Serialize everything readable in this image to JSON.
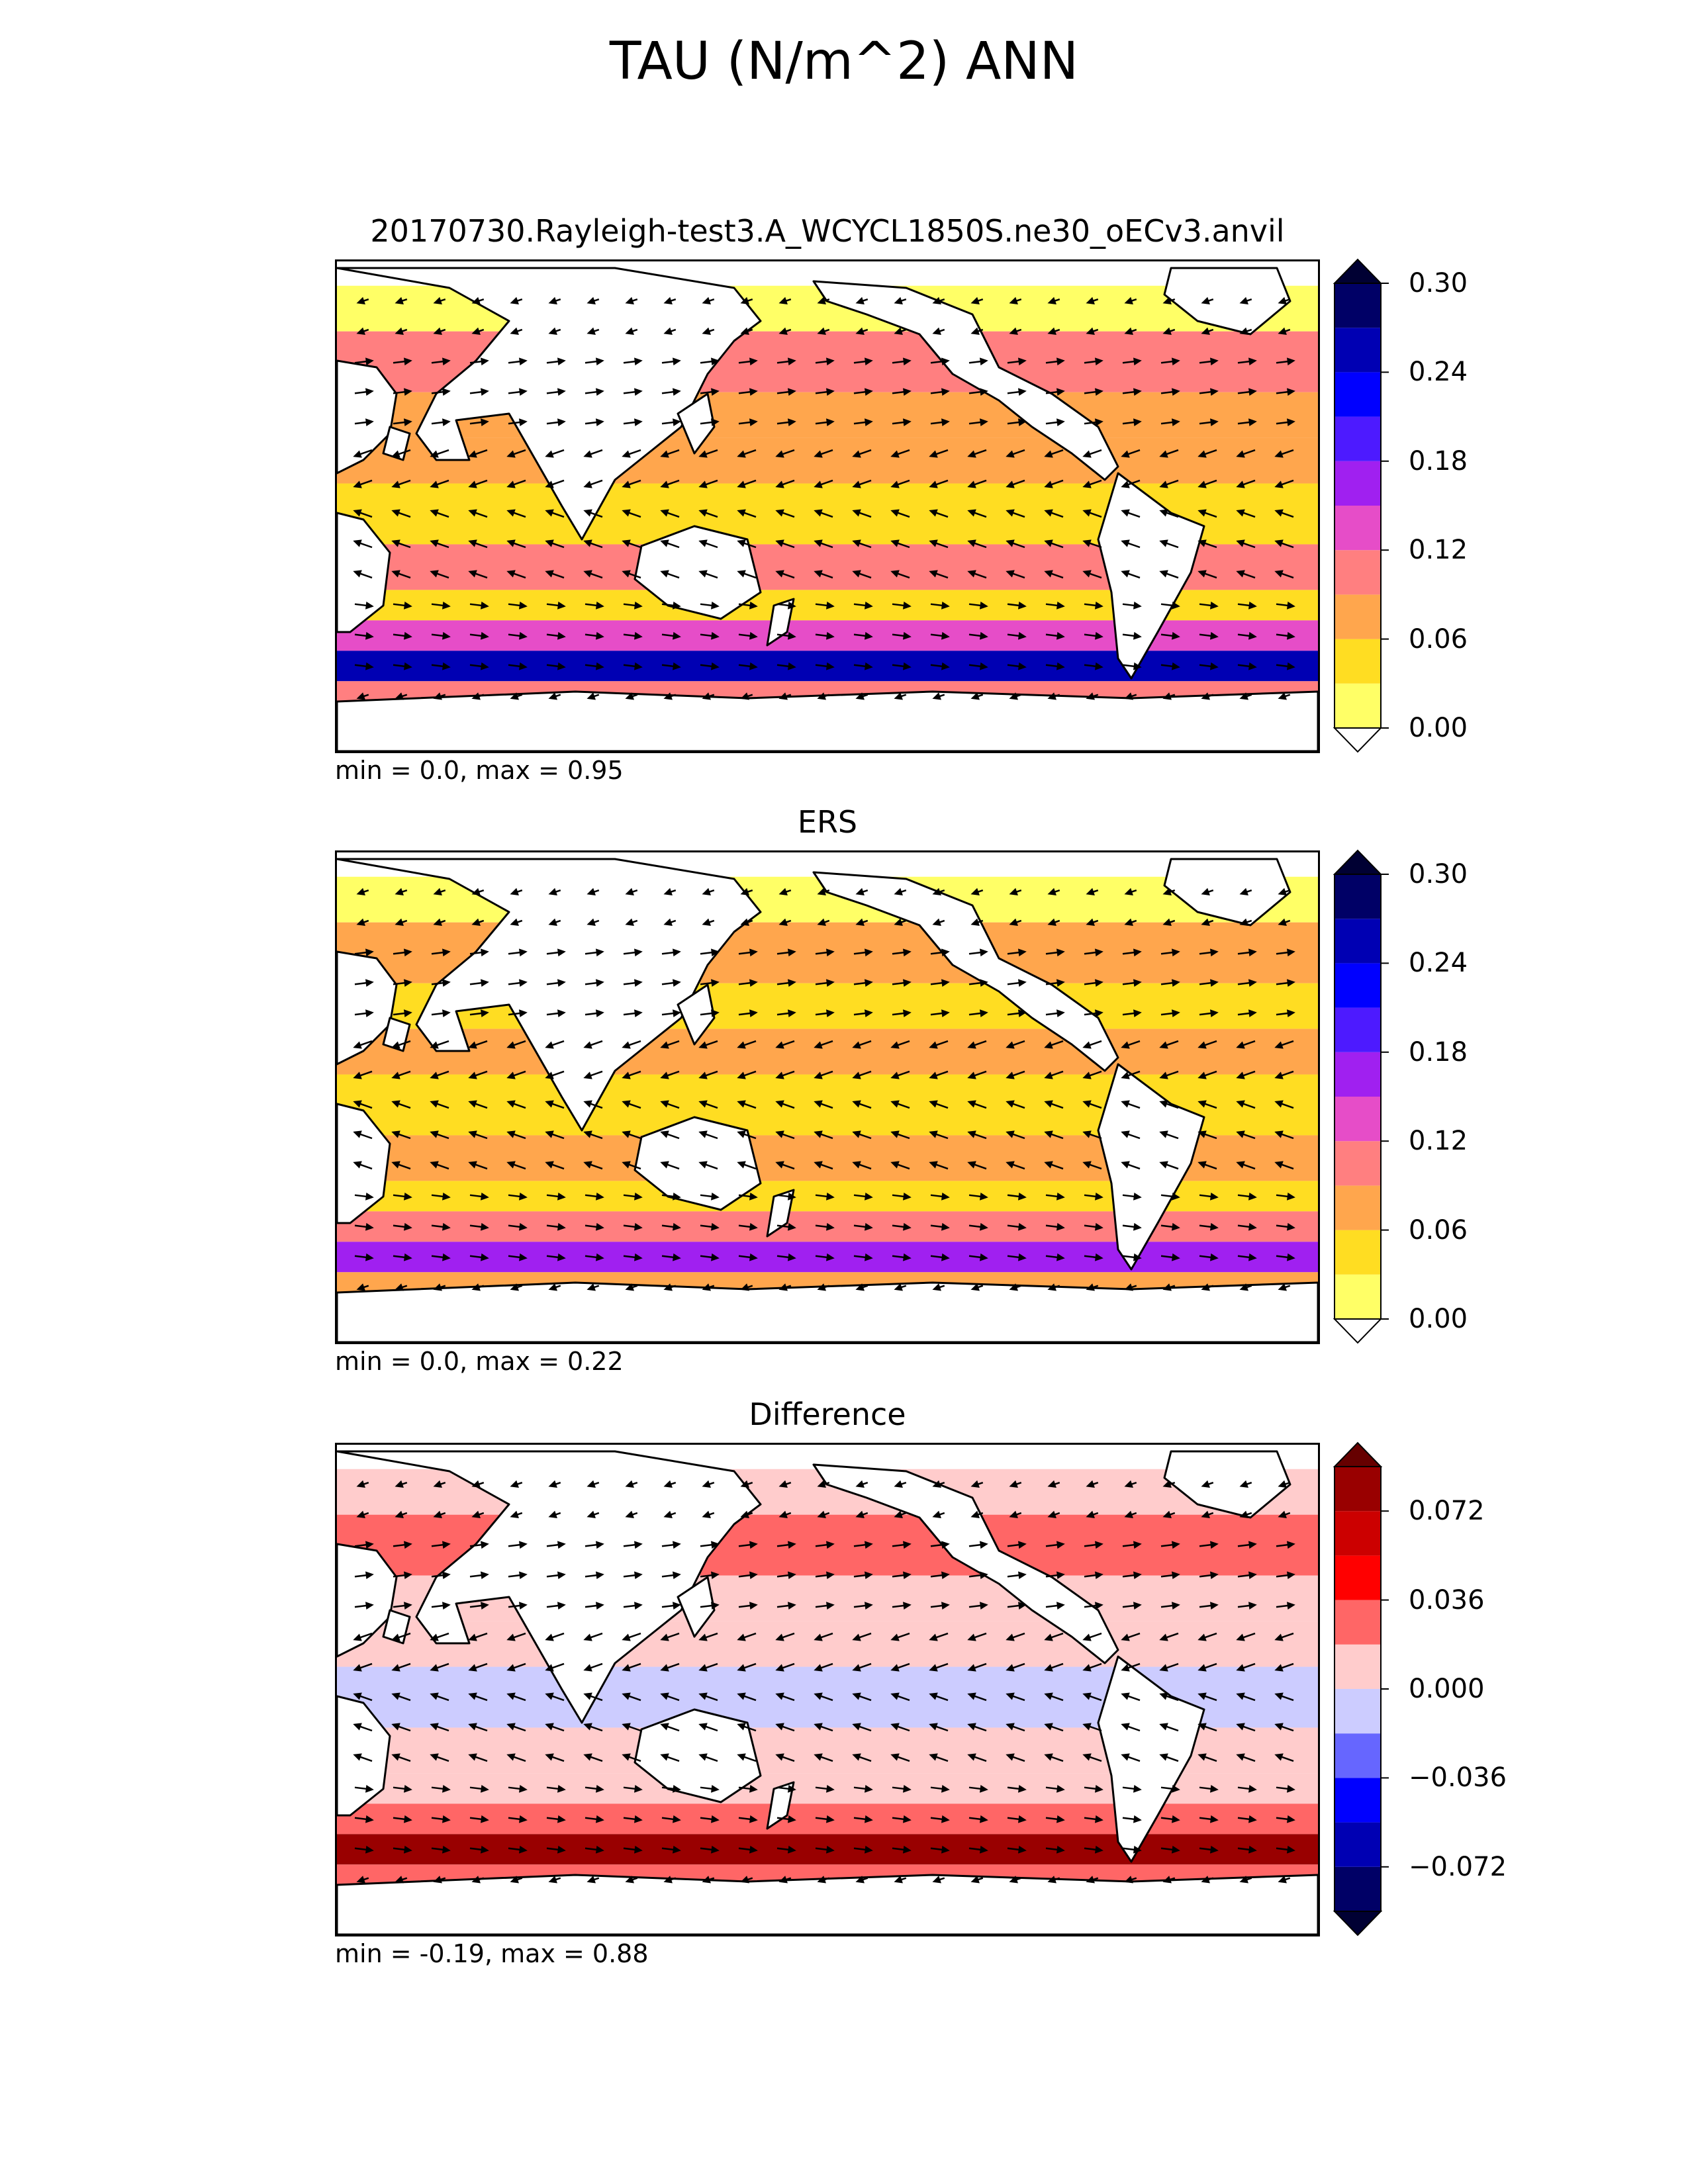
{
  "figure": {
    "title": "TAU (N/m^2) ANN"
  },
  "chart_data": [
    {
      "type": "heatmap",
      "title": "20170730.Rayleigh-test3.A_WCYCL1850S.ne30_oECv3.anvil",
      "stats": "min = 0.0, max = 0.95",
      "projection": "global lat-lon, centered at 180°",
      "overlay": "wind stress vectors (arrows)",
      "colorbar": {
        "levels": [
          0.0,
          0.03,
          0.06,
          0.09,
          0.12,
          0.15,
          0.18,
          0.21,
          0.24,
          0.27,
          0.3
        ],
        "colors": [
          "#ffff66",
          "#ffdd22",
          "#ffa64d",
          "#ff7f80",
          "#e64dc8",
          "#a020f0",
          "#4d1aff",
          "#0000ff",
          "#0000b3",
          "#000066"
        ],
        "extend": "both",
        "under_color": "#ffffff",
        "over_color": "#000033",
        "tick_values": [
          0.0,
          0.06,
          0.12,
          0.18,
          0.24,
          0.3
        ],
        "tick_labels": [
          "0.00",
          "0.06",
          "0.12",
          "0.18",
          "0.24",
          "0.30"
        ]
      },
      "zonal_bands": [
        {
          "lat_range": [
            60,
            75
          ],
          "value": 0.02
        },
        {
          "lat_range": [
            40,
            60
          ],
          "value": 0.1
        },
        {
          "lat_range": [
            25,
            40
          ],
          "value": 0.06
        },
        {
          "lat_range": [
            10,
            25
          ],
          "value": 0.08
        },
        {
          "lat_range": [
            -10,
            10
          ],
          "value": 0.03
        },
        {
          "lat_range": [
            -25,
            -10
          ],
          "value": 0.09
        },
        {
          "lat_range": [
            -35,
            -25
          ],
          "value": 0.05
        },
        {
          "lat_range": [
            -45,
            -35
          ],
          "value": 0.12
        },
        {
          "lat_range": [
            -55,
            -45
          ],
          "value": 0.25
        },
        {
          "lat_range": [
            -62,
            -55
          ],
          "value": 0.1
        }
      ]
    },
    {
      "type": "heatmap",
      "title": "ERS",
      "stats": "min = 0.0, max = 0.22",
      "projection": "global lat-lon, centered at 180°",
      "overlay": "wind stress vectors (arrows)",
      "colorbar": {
        "levels": [
          0.0,
          0.03,
          0.06,
          0.09,
          0.12,
          0.15,
          0.18,
          0.21,
          0.24,
          0.27,
          0.3
        ],
        "colors": [
          "#ffff66",
          "#ffdd22",
          "#ffa64d",
          "#ff7f80",
          "#e64dc8",
          "#a020f0",
          "#4d1aff",
          "#0000ff",
          "#0000b3",
          "#000066"
        ],
        "extend": "both",
        "under_color": "#ffffff",
        "over_color": "#000033",
        "tick_values": [
          0.0,
          0.06,
          0.12,
          0.18,
          0.24,
          0.3
        ],
        "tick_labels": [
          "0.00",
          "0.06",
          "0.12",
          "0.18",
          "0.24",
          "0.30"
        ]
      },
      "zonal_bands": [
        {
          "lat_range": [
            60,
            75
          ],
          "value": 0.02
        },
        {
          "lat_range": [
            40,
            60
          ],
          "value": 0.08
        },
        {
          "lat_range": [
            25,
            40
          ],
          "value": 0.05
        },
        {
          "lat_range": [
            10,
            25
          ],
          "value": 0.08
        },
        {
          "lat_range": [
            -10,
            10
          ],
          "value": 0.03
        },
        {
          "lat_range": [
            -25,
            -10
          ],
          "value": 0.08
        },
        {
          "lat_range": [
            -35,
            -25
          ],
          "value": 0.05
        },
        {
          "lat_range": [
            -45,
            -35
          ],
          "value": 0.1
        },
        {
          "lat_range": [
            -55,
            -45
          ],
          "value": 0.17
        },
        {
          "lat_range": [
            -62,
            -55
          ],
          "value": 0.07
        }
      ]
    },
    {
      "type": "heatmap",
      "title": "Difference",
      "stats": "min = -0.19, max = 0.88",
      "projection": "global lat-lon, centered at 180°",
      "overlay": "wind stress difference vectors (arrows)",
      "colorbar": {
        "levels": [
          -0.09,
          -0.072,
          -0.054,
          -0.036,
          -0.018,
          0.0,
          0.018,
          0.036,
          0.054,
          0.072,
          0.09
        ],
        "colors": [
          "#000066",
          "#0000b3",
          "#0000ff",
          "#6666ff",
          "#ccccff",
          "#ffcccc",
          "#ff6666",
          "#ff0000",
          "#cc0000",
          "#990000"
        ],
        "extend": "both",
        "under_color": "#000033",
        "over_color": "#660000",
        "tick_values": [
          -0.072,
          -0.036,
          0.0,
          0.036,
          0.072
        ],
        "tick_labels": [
          "−0.072",
          "−0.036",
          "0.000",
          "0.036",
          "0.072"
        ]
      },
      "zonal_bands": [
        {
          "lat_range": [
            60,
            75
          ],
          "value": 0.005
        },
        {
          "lat_range": [
            40,
            60
          ],
          "value": 0.03
        },
        {
          "lat_range": [
            25,
            40
          ],
          "value": 0.01
        },
        {
          "lat_range": [
            10,
            25
          ],
          "value": 0.01
        },
        {
          "lat_range": [
            -10,
            10
          ],
          "value": -0.005
        },
        {
          "lat_range": [
            -25,
            -10
          ],
          "value": 0.01
        },
        {
          "lat_range": [
            -35,
            -25
          ],
          "value": 0.005
        },
        {
          "lat_range": [
            -45,
            -35
          ],
          "value": 0.03
        },
        {
          "lat_range": [
            -55,
            -45
          ],
          "value": 0.08
        },
        {
          "lat_range": [
            -62,
            -55
          ],
          "value": 0.03
        }
      ]
    }
  ]
}
